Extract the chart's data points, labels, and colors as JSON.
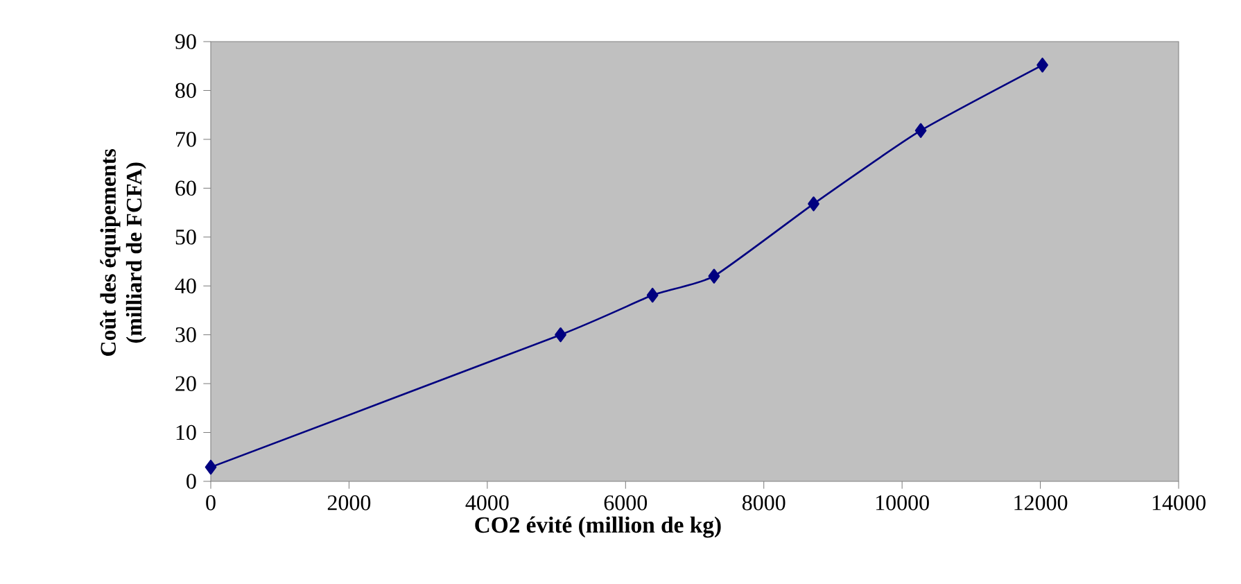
{
  "chart_data": {
    "type": "line",
    "xlabel": "CO2 évité (million de kg)",
    "ylabel": "Coût des équipements\n(milliard de FCFA)",
    "x": [
      0,
      5060,
      6390,
      7280,
      8720,
      10270,
      12030
    ],
    "series": [
      {
        "color": "#000080",
        "values": [
          2.9,
          30,
          38.1,
          42,
          56.8,
          71.8,
          85.2
        ]
      }
    ],
    "xlim": [
      0,
      14000
    ],
    "xticks": [
      0,
      2000,
      4000,
      6000,
      8000,
      10000,
      12000,
      14000
    ],
    "ylim": [
      0,
      90
    ],
    "yticks": [
      0,
      10,
      20,
      30,
      40,
      50,
      60,
      70,
      80,
      90
    ],
    "marker": "diamond",
    "line_style": "solid",
    "grid": false,
    "legend": false
  }
}
